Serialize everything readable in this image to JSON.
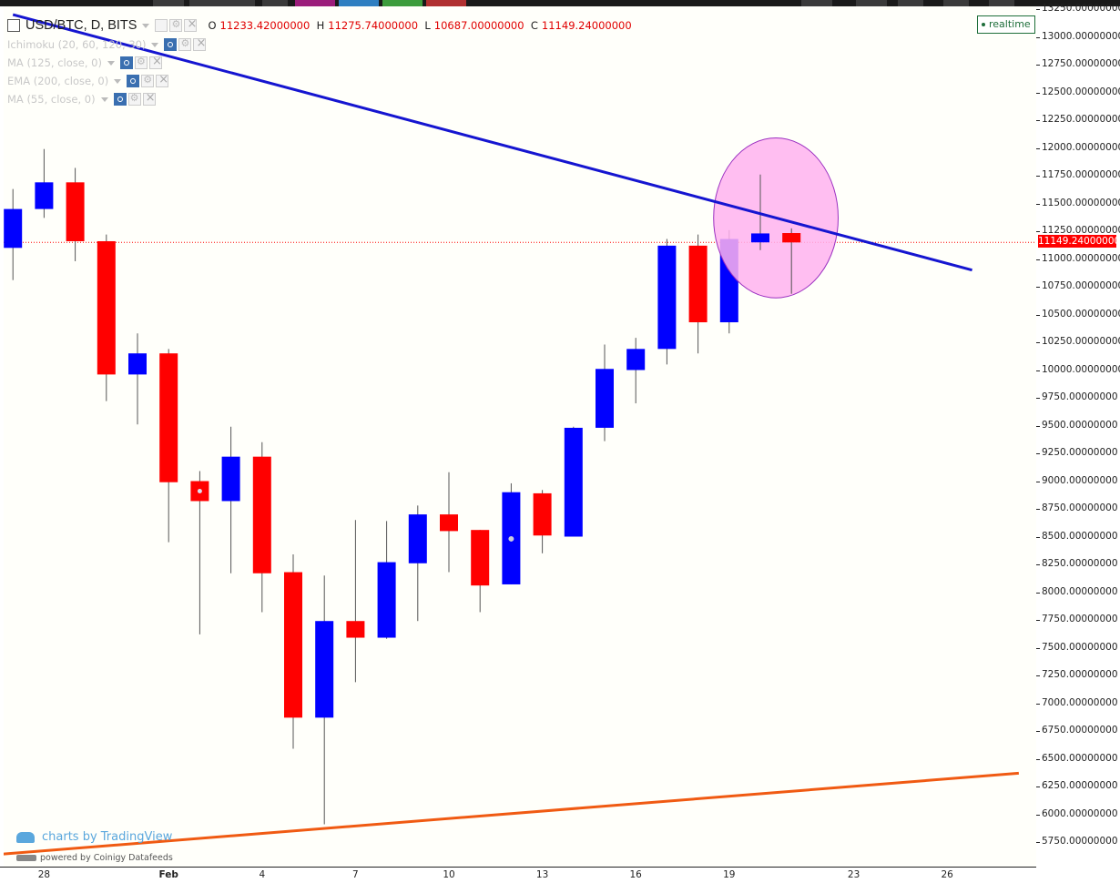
{
  "header": {
    "symbol": "USD/BTC, D, BITS",
    "ohlc": [
      {
        "key": "O",
        "value": "11233.42000000"
      },
      {
        "key": "H",
        "value": "11275.74000000"
      },
      {
        "key": "L",
        "value": "10687.00000000"
      },
      {
        "key": "C",
        "value": "11149.24000000"
      }
    ]
  },
  "indicators": [
    {
      "label": "Ichimoku (20, 60, 120, 30)"
    },
    {
      "label": "MA (125, close, 0)"
    },
    {
      "label": "EMA (200, close, 0)"
    },
    {
      "label": "MA (55, close, 0)"
    }
  ],
  "realtime_label": "realtime",
  "last_price_label": "11149.24000000",
  "watermark": {
    "charts_by": "charts by TradingView",
    "powered_by": "powered by Coinigy Datafeeds"
  },
  "colors": {
    "up": "#0000ff",
    "down": "#ff0000",
    "resistance_line": "#1515d0",
    "support_line": "#f05a12",
    "highlight_fill": "#ffb3ee",
    "highlight_stroke": "#9b2fc0",
    "last_price": "#ff0000"
  },
  "chart_data": {
    "type": "candlestick",
    "y_axis": {
      "range": [
        5620,
        13280
      ],
      "ticks": [
        "13250.00000000",
        "13000.00000000",
        "12750.00000000",
        "12500.00000000",
        "12250.00000000",
        "12000.00000000",
        "11750.00000000",
        "11500.00000000",
        "11250.00000000",
        "11000.00000000",
        "10750.00000000",
        "10500.00000000",
        "10250.00000000",
        "10000.00000000",
        "9750.00000000",
        "9500.00000000",
        "9250.00000000",
        "9000.00000000",
        "8750.00000000",
        "8500.00000000",
        "8250.00000000",
        "8000.00000000",
        "7750.00000000",
        "7500.00000000",
        "7250.00000000",
        "7000.00000000",
        "6750.00000000",
        "6500.00000000",
        "6250.00000000",
        "6000.00000000",
        "5750.00000000"
      ]
    },
    "x_axis": {
      "ticks": [
        {
          "label": "28",
          "index": 1,
          "bold": false
        },
        {
          "label": "Feb",
          "index": 5,
          "bold": true
        },
        {
          "label": "4",
          "index": 8,
          "bold": false
        },
        {
          "label": "7",
          "index": 11,
          "bold": false
        },
        {
          "label": "10",
          "index": 14,
          "bold": false
        },
        {
          "label": "13",
          "index": 17,
          "bold": false
        },
        {
          "label": "16",
          "index": 20,
          "bold": false
        },
        {
          "label": "19",
          "index": 23,
          "bold": false
        },
        {
          "label": "23",
          "index": 27,
          "bold": false
        },
        {
          "label": "26",
          "index": 30,
          "bold": false
        }
      ]
    },
    "candles": [
      {
        "o": 11100,
        "h": 11630,
        "l": 10810,
        "c": 11450
      },
      {
        "o": 11450,
        "h": 11990,
        "l": 11370,
        "c": 11690
      },
      {
        "o": 11690,
        "h": 11820,
        "l": 10980,
        "c": 11160
      },
      {
        "o": 11160,
        "h": 11220,
        "l": 9720,
        "c": 9960
      },
      {
        "o": 9960,
        "h": 10330,
        "l": 9510,
        "c": 10150
      },
      {
        "o": 10150,
        "h": 10190,
        "l": 8450,
        "c": 8990
      },
      {
        "o": 9000,
        "h": 9090,
        "l": 7620,
        "c": 8820
      },
      {
        "o": 8820,
        "h": 9490,
        "l": 8170,
        "c": 9220
      },
      {
        "o": 9220,
        "h": 9350,
        "l": 7820,
        "c": 8170
      },
      {
        "o": 8180,
        "h": 8340,
        "l": 6590,
        "c": 6870
      },
      {
        "o": 6870,
        "h": 8150,
        "l": 5910,
        "c": 7740
      },
      {
        "o": 7740,
        "h": 8650,
        "l": 7190,
        "c": 7590
      },
      {
        "o": 7590,
        "h": 8640,
        "l": 7580,
        "c": 8270
      },
      {
        "o": 8260,
        "h": 8780,
        "l": 7740,
        "c": 8700
      },
      {
        "o": 8700,
        "h": 9080,
        "l": 8180,
        "c": 8550
      },
      {
        "o": 8560,
        "h": 8560,
        "l": 7820,
        "c": 8060
      },
      {
        "o": 8070,
        "h": 8980,
        "l": 8070,
        "c": 8900
      },
      {
        "o": 8890,
        "h": 8920,
        "l": 8350,
        "c": 8510
      },
      {
        "o": 8500,
        "h": 9490,
        "l": 8500,
        "c": 9480
      },
      {
        "o": 9480,
        "h": 10230,
        "l": 9360,
        "c": 10010
      },
      {
        "o": 10000,
        "h": 10290,
        "l": 9700,
        "c": 10190
      },
      {
        "o": 10190,
        "h": 11180,
        "l": 10050,
        "c": 11120
      },
      {
        "o": 11120,
        "h": 11220,
        "l": 10150,
        "c": 10430
      },
      {
        "o": 10430,
        "h": 11260,
        "l": 10330,
        "c": 11180
      },
      {
        "o": 11150,
        "h": 11760,
        "l": 11080,
        "c": 11230
      },
      {
        "o": 11233.42,
        "h": 11275.74,
        "l": 10687.0,
        "c": 11149.24
      }
    ],
    "trendlines": [
      {
        "name": "resistance",
        "points": [
          [
            0,
            13200
          ],
          [
            30.8,
            10900
          ]
        ]
      },
      {
        "name": "support",
        "points": [
          [
            -1.3,
            5620
          ],
          [
            32.3,
            6370
          ]
        ]
      }
    ],
    "highlight": {
      "cx_index": 24.5,
      "cy": 11370,
      "rx_bars": 2.0,
      "ry_value": 720
    },
    "last_price": 11149.24,
    "grid": false
  }
}
